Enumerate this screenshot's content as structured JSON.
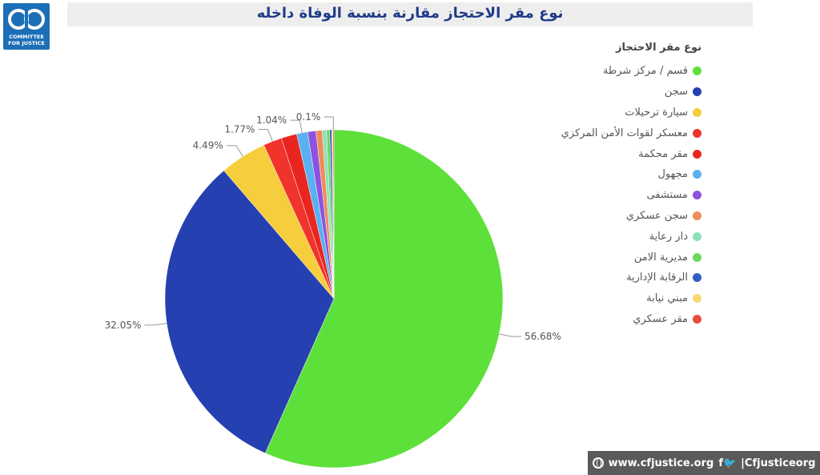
{
  "logo": {
    "line1": "COMMITTEE",
    "line2": "FOR JUSTICE"
  },
  "footer": {
    "website": "www.cfjustice.org",
    "social_icons": "f🐦",
    "handle": "|Cfjusticeorg"
  },
  "chart_data": {
    "type": "pie",
    "title": "نوع مقر الاحتجاز مقارنة بنسبة الوفاة داخله",
    "legend_title": "نوع مقر الاحتجاز",
    "legend_position": "right",
    "slices": [
      {
        "name": "قسم / مركز شرطة",
        "value": 56.68,
        "label": "56.68%",
        "color": "#5ee03a"
      },
      {
        "name": "سجن",
        "value": 32.05,
        "label": "32.05%",
        "color": "#2540b0"
      },
      {
        "name": "سيارة ترحيلات",
        "value": 4.49,
        "label": "4.49%",
        "color": "#f6cd3c"
      },
      {
        "name": "معسكر لقوات الأمن المركزي",
        "value": 1.77,
        "label": "1.77%",
        "color": "#f0332b"
      },
      {
        "name": "مقر محكمة",
        "value": 1.5,
        "label": "",
        "color": "#e8261f"
      },
      {
        "name": "مجهول",
        "value": 1.04,
        "label": "1.04%",
        "color": "#5ab0f0"
      },
      {
        "name": "مستشفى",
        "value": 0.8,
        "label": "",
        "color": "#8e52e0"
      },
      {
        "name": "سجن عسكري",
        "value": 0.6,
        "label": "",
        "color": "#f08c5a"
      },
      {
        "name": "دار رعاية",
        "value": 0.4,
        "label": "",
        "color": "#8ee0b8"
      },
      {
        "name": "مديرية الامن",
        "value": 0.3,
        "label": "",
        "color": "#6ad860"
      },
      {
        "name": "الرقابة الإدارية",
        "value": 0.2,
        "label": "",
        "color": "#3060c0"
      },
      {
        "name": "مبني نيابة",
        "value": 0.1,
        "label": "",
        "color": "#f8d878"
      },
      {
        "name": "مقر عسكري",
        "value": 0.1,
        "label": "0.1%",
        "color": "#e84c3c"
      }
    ]
  }
}
